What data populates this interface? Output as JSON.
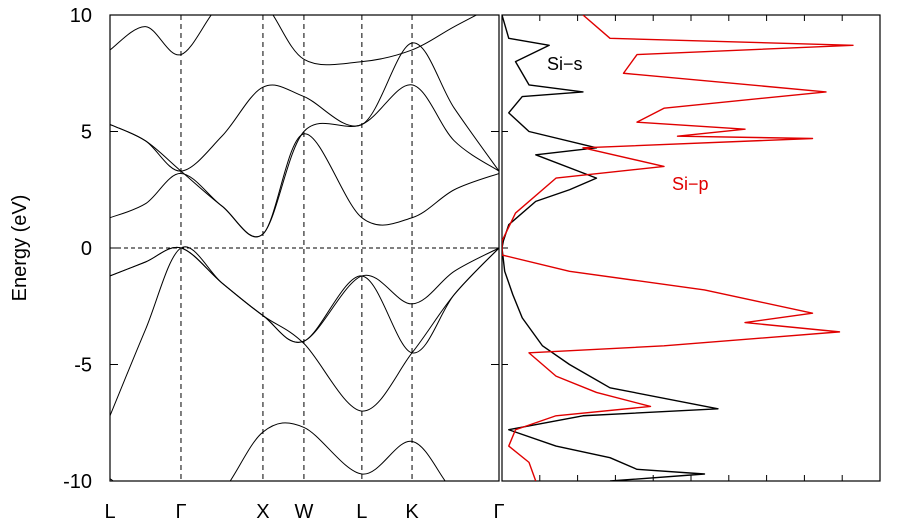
{
  "chart_data": [
    {
      "type": "line",
      "title": "",
      "ylabel": "Energy (eV)",
      "ylim": [
        -10,
        10
      ],
      "yticks": [
        "10",
        "5",
        "0",
        "-5",
        "-10"
      ],
      "ytick_values": [
        10,
        5,
        0,
        -5,
        -10
      ],
      "kpoints": [
        {
          "label": "L",
          "x": 0.0
        },
        {
          "label": "Γ",
          "x": 0.866
        },
        {
          "label": "X",
          "x": 1.866
        },
        {
          "label": "W",
          "x": 2.366
        },
        {
          "label": "L",
          "x": 3.073
        },
        {
          "label": "K",
          "x": 3.685
        },
        {
          "label": "Γ",
          "x": 4.746
        }
      ],
      "fermi_level": 0,
      "line_color": "#000000",
      "bands": [
        {
          "name": "",
          "points": [
            [
              0,
              -1.2
            ],
            [
              0.433,
              -0.6
            ],
            [
              0.866,
              0.0
            ],
            [
              1.366,
              -1.5
            ],
            [
              1.866,
              -2.9
            ],
            [
              2.366,
              -4.0
            ],
            [
              3.073,
              -1.2
            ],
            [
              3.685,
              -2.4
            ],
            [
              4.2,
              -1.0
            ],
            [
              4.746,
              0.0
            ]
          ]
        },
        {
          "name": "",
          "points": [
            [
              0,
              -1.2
            ],
            [
              0.433,
              -0.6
            ],
            [
              0.866,
              0.0
            ],
            [
              1.366,
              -1.5
            ],
            [
              1.866,
              -2.9
            ],
            [
              2.366,
              -4.0
            ],
            [
              3.073,
              -1.2
            ],
            [
              3.685,
              -4.5
            ],
            [
              4.2,
              -2.0
            ],
            [
              4.746,
              0.0
            ]
          ]
        },
        {
          "name": "",
          "points": [
            [
              0,
              -7.2
            ],
            [
              0.433,
              -3.5
            ],
            [
              0.866,
              0.0
            ],
            [
              1.366,
              -1.5
            ],
            [
              1.866,
              -2.9
            ],
            [
              2.366,
              -4.1
            ],
            [
              3.073,
              -7.0
            ],
            [
              3.685,
              -4.5
            ],
            [
              4.2,
              -2.0
            ],
            [
              4.746,
              0.0
            ]
          ]
        },
        {
          "name": "",
          "points": [
            [
              0,
              -9.9
            ],
            [
              0.433,
              -11.0
            ],
            [
              0.866,
              -12.0
            ],
            [
              1.366,
              -10.5
            ],
            [
              1.866,
              -7.9
            ],
            [
              2.366,
              -7.7
            ],
            [
              3.073,
              -9.7
            ],
            [
              3.685,
              -8.3
            ],
            [
              4.2,
              -10.5
            ],
            [
              4.746,
              -12.0
            ]
          ]
        },
        {
          "name": "",
          "points": [
            [
              0,
              1.3
            ],
            [
              0.433,
              1.9
            ],
            [
              0.866,
              3.2
            ],
            [
              1.366,
              1.8
            ],
            [
              1.866,
              0.6
            ],
            [
              2.366,
              4.9
            ],
            [
              3.073,
              1.3
            ],
            [
              3.685,
              1.3
            ],
            [
              4.2,
              2.5
            ],
            [
              4.746,
              3.2
            ]
          ]
        },
        {
          "name": "",
          "points": [
            [
              0,
              5.3
            ],
            [
              0.433,
              4.6
            ],
            [
              0.866,
              3.3
            ],
            [
              1.366,
              1.8
            ],
            [
              1.866,
              0.6
            ],
            [
              2.366,
              5.0
            ],
            [
              3.073,
              5.3
            ],
            [
              3.685,
              7.0
            ],
            [
              4.2,
              4.6
            ],
            [
              4.746,
              3.3
            ]
          ]
        },
        {
          "name": "",
          "points": [
            [
              0,
              5.3
            ],
            [
              0.433,
              4.6
            ],
            [
              0.866,
              3.3
            ],
            [
              1.366,
              4.8
            ],
            [
              1.866,
              6.9
            ],
            [
              2.366,
              6.5
            ],
            [
              3.073,
              5.3
            ],
            [
              3.685,
              8.8
            ],
            [
              4.2,
              6.0
            ],
            [
              4.746,
              3.3
            ]
          ]
        },
        {
          "name": "",
          "points": [
            [
              0,
              8.5
            ],
            [
              0.433,
              9.5
            ],
            [
              0.866,
              8.3
            ],
            [
              1.366,
              10.5
            ],
            [
              1.866,
              10.5
            ],
            [
              2.366,
              8.1
            ],
            [
              3.073,
              8.0
            ],
            [
              3.685,
              8.5
            ],
            [
              4.2,
              9.5
            ],
            [
              4.746,
              10.5
            ]
          ]
        }
      ]
    },
    {
      "type": "line",
      "title": "",
      "ylim": [
        -10,
        10
      ],
      "series": [
        {
          "name": "Si−s",
          "color": "#000000",
          "points": [
            [
              0,
              10
            ],
            [
              0.05,
              9.0
            ],
            [
              0.35,
              8.7
            ],
            [
              0.1,
              8.0
            ],
            [
              0.2,
              7.0
            ],
            [
              0.6,
              6.7
            ],
            [
              0.15,
              6.5
            ],
            [
              0.05,
              5.8
            ],
            [
              0.2,
              5.0
            ],
            [
              0.7,
              4.3
            ],
            [
              0.25,
              4.0
            ],
            [
              0.7,
              3.0
            ],
            [
              0.5,
              2.5
            ],
            [
              0.25,
              2.0
            ],
            [
              0.05,
              1.0
            ],
            [
              0.01,
              0.3
            ],
            [
              0,
              0
            ],
            [
              0.02,
              -1.0
            ],
            [
              0.08,
              -2.0
            ],
            [
              0.15,
              -3.0
            ],
            [
              0.3,
              -4.2
            ],
            [
              0.5,
              -5.0
            ],
            [
              0.8,
              -6.0
            ],
            [
              1.6,
              -6.9
            ],
            [
              0.6,
              -7.2
            ],
            [
              0.05,
              -7.8
            ],
            [
              0.4,
              -8.5
            ],
            [
              0.8,
              -9.0
            ],
            [
              1.0,
              -9.5
            ],
            [
              1.5,
              -9.7
            ],
            [
              0.8,
              -10.0
            ]
          ]
        },
        {
          "name": "Si−p",
          "color": "#e00000",
          "points": [
            [
              0.6,
              10
            ],
            [
              0.8,
              9.0
            ],
            [
              2.6,
              8.7
            ],
            [
              1.0,
              8.3
            ],
            [
              0.9,
              7.5
            ],
            [
              2.4,
              6.7
            ],
            [
              1.2,
              6.0
            ],
            [
              1.0,
              5.4
            ],
            [
              1.8,
              5.1
            ],
            [
              1.3,
              4.8
            ],
            [
              2.3,
              4.7
            ],
            [
              0.6,
              4.3
            ],
            [
              1.2,
              3.5
            ],
            [
              0.4,
              3.0
            ],
            [
              0.1,
              1.5
            ],
            [
              0,
              0.3
            ],
            [
              0,
              -0.3
            ],
            [
              0.5,
              -1.0
            ],
            [
              1.5,
              -1.8
            ],
            [
              1.9,
              -2.3
            ],
            [
              2.3,
              -2.8
            ],
            [
              1.8,
              -3.2
            ],
            [
              2.5,
              -3.6
            ],
            [
              1.2,
              -4.2
            ],
            [
              0.2,
              -4.5
            ],
            [
              0.4,
              -5.5
            ],
            [
              0.7,
              -6.2
            ],
            [
              1.1,
              -6.8
            ],
            [
              0.4,
              -7.2
            ],
            [
              0.1,
              -7.8
            ],
            [
              0.05,
              -8.5
            ],
            [
              0.2,
              -9.2
            ],
            [
              0.25,
              -10
            ]
          ]
        }
      ]
    }
  ]
}
